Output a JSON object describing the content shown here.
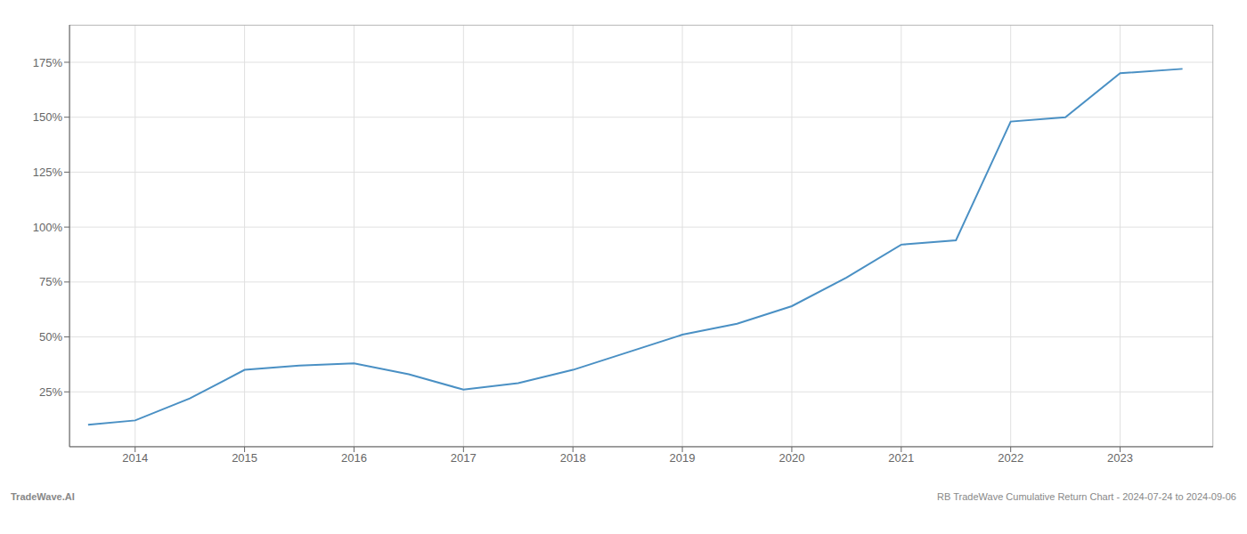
{
  "chart_data": {
    "type": "line",
    "x": [
      2013.57,
      2014.0,
      2014.5,
      2015.0,
      2015.5,
      2016.0,
      2016.5,
      2017.0,
      2017.5,
      2018.0,
      2018.5,
      2019.0,
      2019.5,
      2020.0,
      2020.5,
      2021.0,
      2021.5,
      2022.0,
      2022.5,
      2023.0,
      2023.57
    ],
    "values": [
      10,
      12,
      22,
      35,
      37,
      38,
      33,
      26,
      29,
      35,
      43,
      51,
      56,
      64,
      77,
      92,
      94,
      148,
      150,
      170,
      172
    ],
    "color": "#4a90c4",
    "xlim": [
      2013.4,
      2023.85
    ],
    "xticks": [
      2014,
      2015,
      2016,
      2017,
      2018,
      2019,
      2020,
      2021,
      2022,
      2023
    ],
    "ylim": [
      0,
      192
    ],
    "yticks": [
      {
        "value": 25,
        "label": "25%"
      },
      {
        "value": 50,
        "label": "50%"
      },
      {
        "value": 75,
        "label": "75%"
      },
      {
        "value": 100,
        "label": "100%"
      },
      {
        "value": 125,
        "label": "125%"
      },
      {
        "value": 150,
        "label": "150%"
      },
      {
        "value": 175,
        "label": "175%"
      }
    ],
    "grid": true,
    "annotations": [
      "TradeWave.AI",
      "RB TradeWave Cumulative Return Chart - 2024-07-24 to 2024-09-06"
    ]
  }
}
